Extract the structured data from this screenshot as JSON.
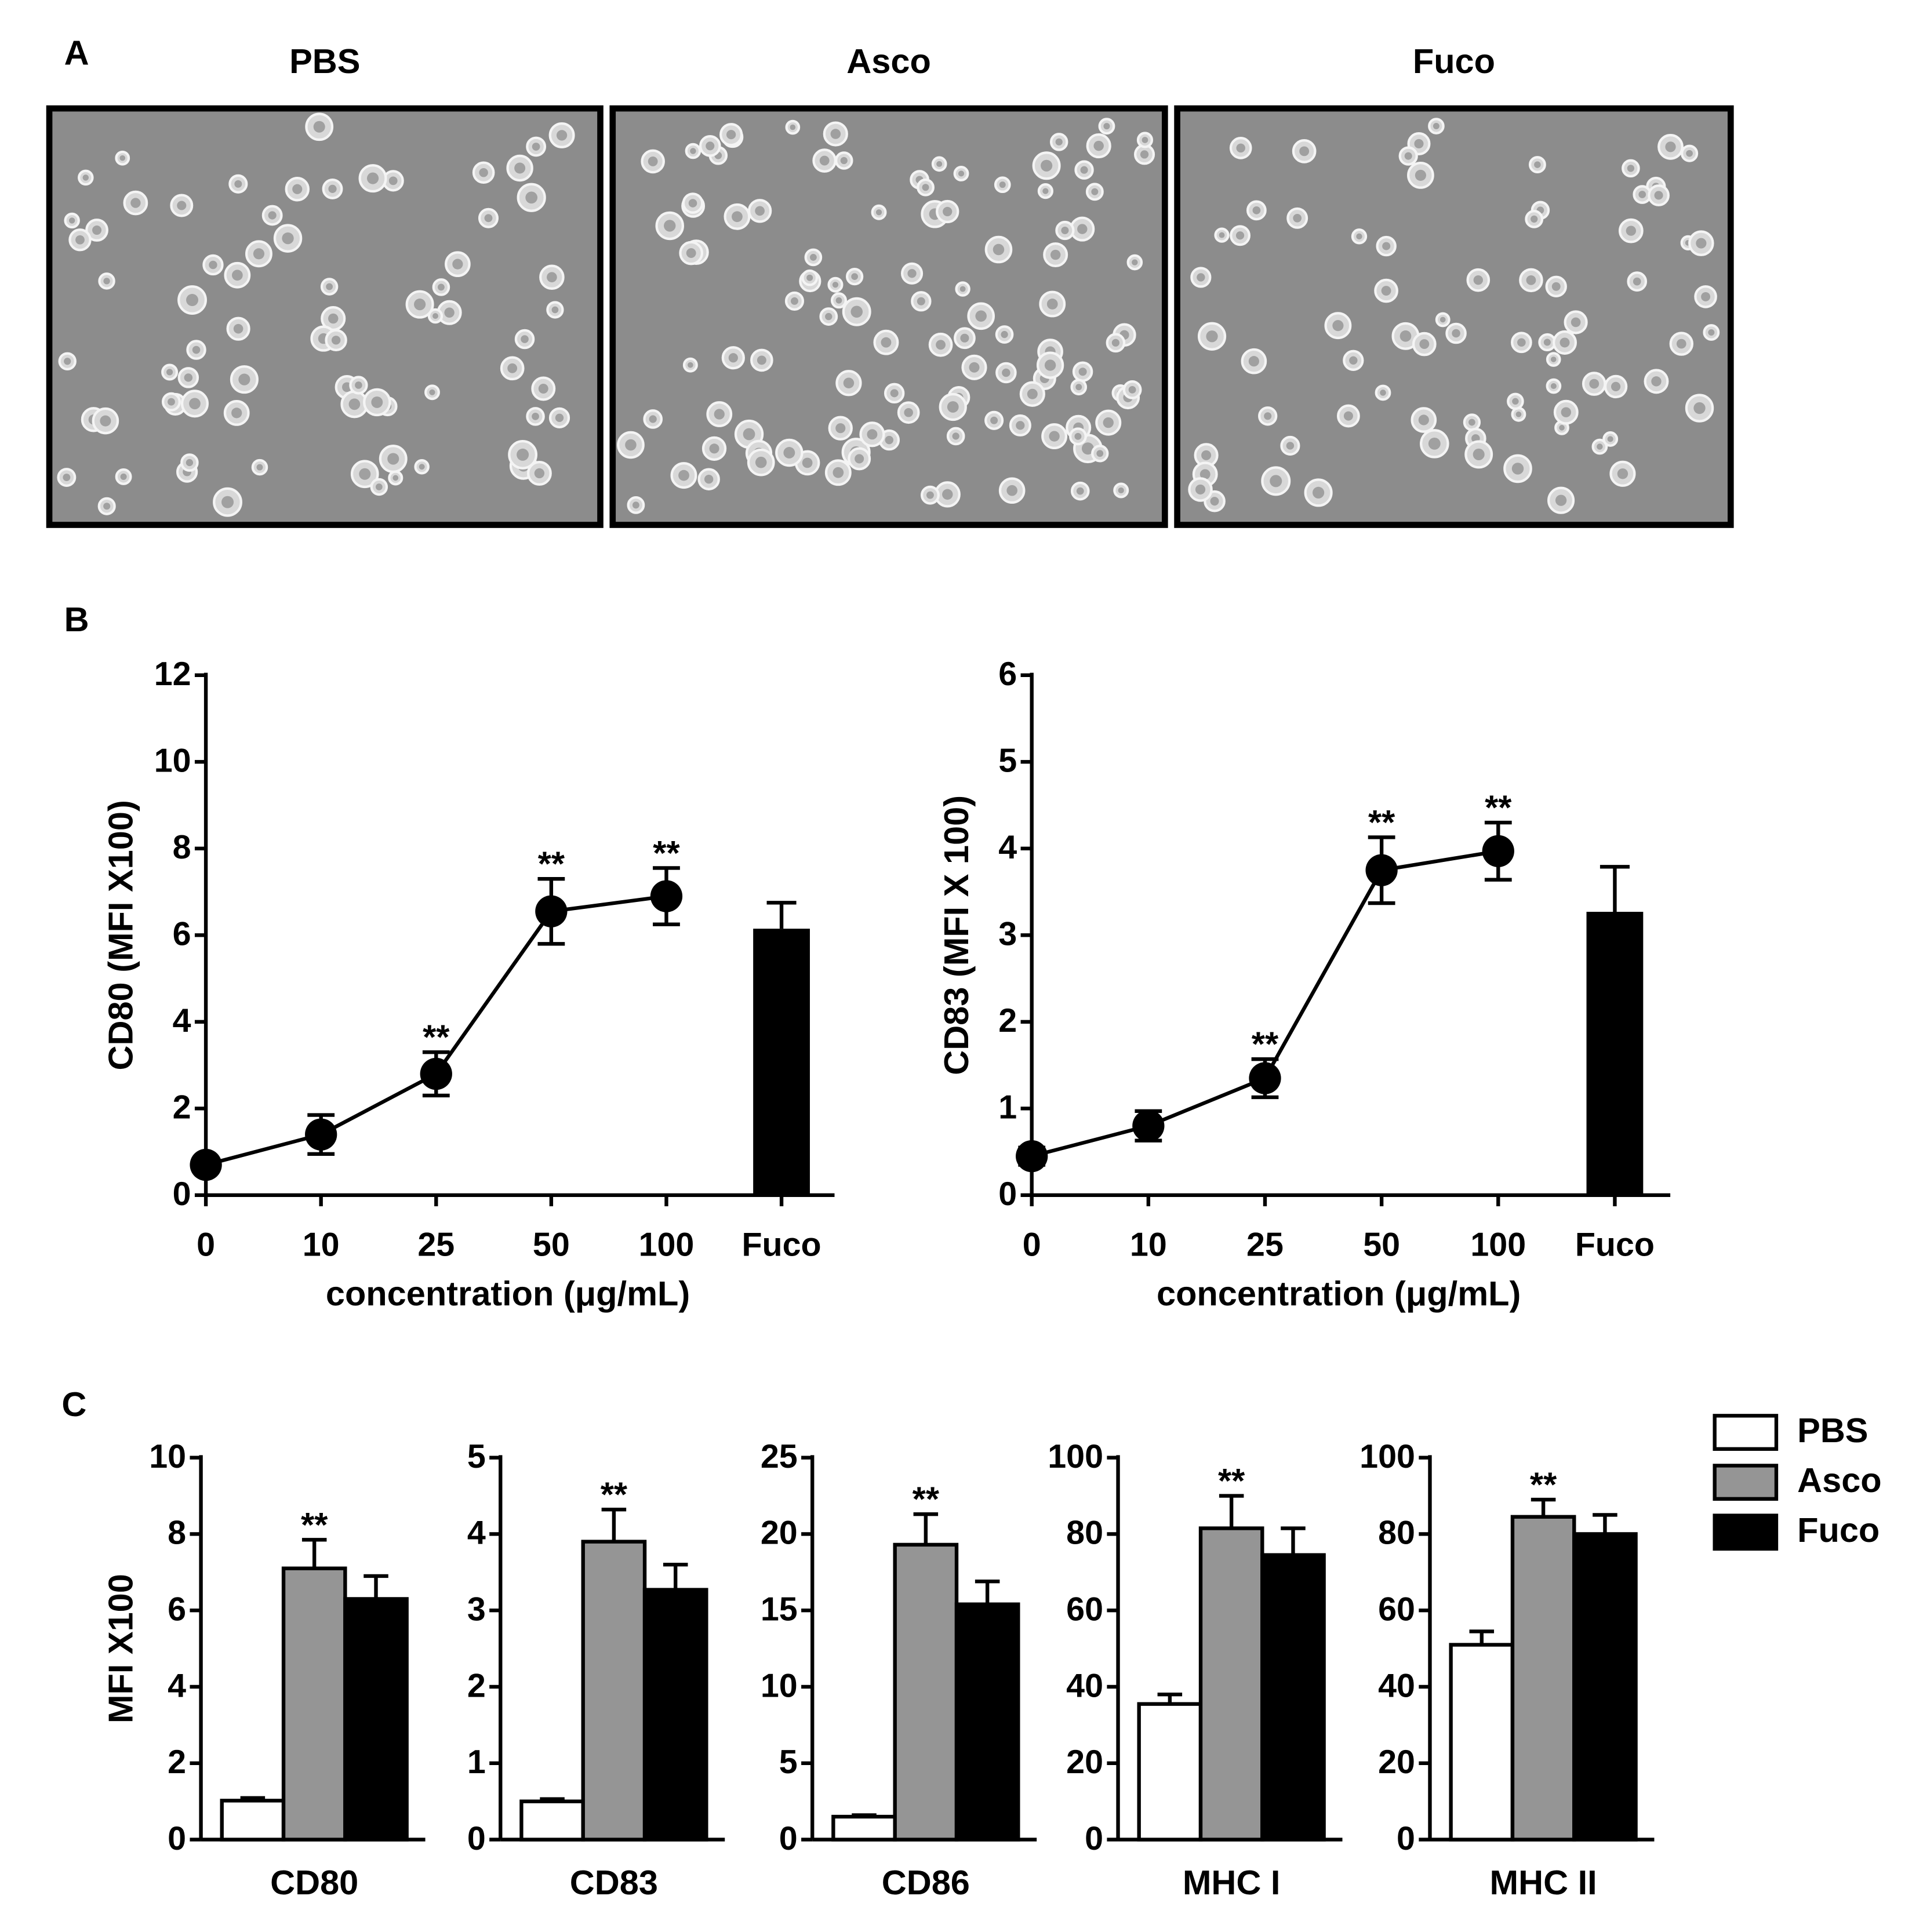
{
  "panel_labels": [
    "A",
    "B",
    "C"
  ],
  "image_titles": [
    "PBS",
    "Asco",
    "Fuco"
  ],
  "chart_data": [
    {
      "type": "line",
      "ylabel": "CD80 (MFI X100)",
      "xlabel": "concentration (μg/mL)",
      "categories": [
        "0",
        "10",
        "25",
        "50",
        "100",
        "Fuco"
      ],
      "ylim": [
        0,
        12
      ],
      "yticks": [
        0,
        2,
        4,
        6,
        8,
        10,
        12
      ],
      "series": [
        {
          "type": "line",
          "color": "#000000",
          "values": [
            0.7,
            1.4,
            2.8,
            6.55,
            6.9,
            null
          ],
          "errors": [
            0.1,
            0.45,
            0.5,
            0.75,
            0.65,
            null
          ]
        },
        {
          "type": "bar",
          "color": "#000000",
          "values": [
            null,
            null,
            null,
            null,
            null,
            6.15
          ],
          "errors": [
            null,
            null,
            null,
            null,
            null,
            0.6
          ]
        }
      ],
      "annotations": [
        {
          "category": "25",
          "text": "**"
        },
        {
          "category": "50",
          "text": "**"
        },
        {
          "category": "100",
          "text": "**"
        }
      ]
    },
    {
      "type": "line",
      "ylabel": "CD83 (MFI X 100)",
      "xlabel": "concentration (μg/mL)",
      "categories": [
        "0",
        "10",
        "25",
        "50",
        "100",
        "Fuco"
      ],
      "ylim": [
        0,
        6
      ],
      "yticks": [
        0,
        1,
        2,
        3,
        4,
        5,
        6
      ],
      "series": [
        {
          "type": "line",
          "color": "#000000",
          "values": [
            0.45,
            0.8,
            1.35,
            3.75,
            3.97,
            null
          ],
          "errors": [
            0.1,
            0.17,
            0.22,
            0.38,
            0.33,
            null
          ]
        },
        {
          "type": "bar",
          "color": "#000000",
          "values": [
            null,
            null,
            null,
            null,
            null,
            3.27
          ],
          "errors": [
            null,
            null,
            null,
            null,
            null,
            0.52
          ]
        }
      ],
      "annotations": [
        {
          "category": "25",
          "text": "**"
        },
        {
          "category": "50",
          "text": "**"
        },
        {
          "category": "100",
          "text": "**"
        }
      ]
    },
    {
      "type": "bar",
      "ylabel": "MFI X100",
      "categories": [
        "CD80"
      ],
      "ylim": [
        0,
        10
      ],
      "yticks": [
        0,
        2,
        4,
        6,
        8,
        10
      ],
      "legend": "right",
      "series": [
        {
          "name": "PBS",
          "color": "#ffffff",
          "values": [
            1.02
          ],
          "errors": [
            0.07
          ]
        },
        {
          "name": "Asco",
          "color": "#959595",
          "values": [
            7.1
          ],
          "errors": [
            0.75
          ]
        },
        {
          "name": "Fuco",
          "color": "#000000",
          "values": [
            6.3
          ],
          "errors": [
            0.6
          ]
        }
      ],
      "annotations": [
        {
          "series": "Asco",
          "text": "**"
        }
      ]
    },
    {
      "type": "bar",
      "categories": [
        "CD83"
      ],
      "ylim": [
        0,
        5
      ],
      "yticks": [
        0,
        1,
        2,
        3,
        4,
        5
      ],
      "series": [
        {
          "name": "PBS",
          "color": "#ffffff",
          "values": [
            0.5
          ],
          "errors": [
            0.03
          ]
        },
        {
          "name": "Asco",
          "color": "#959595",
          "values": [
            3.9
          ],
          "errors": [
            0.42
          ]
        },
        {
          "name": "Fuco",
          "color": "#000000",
          "values": [
            3.27
          ],
          "errors": [
            0.33
          ]
        }
      ],
      "annotations": [
        {
          "series": "Asco",
          "text": "**"
        }
      ]
    },
    {
      "type": "bar",
      "categories": [
        "CD86"
      ],
      "ylim": [
        0,
        25
      ],
      "yticks": [
        0,
        5,
        10,
        15,
        20,
        25
      ],
      "series": [
        {
          "name": "PBS",
          "color": "#ffffff",
          "values": [
            1.5
          ],
          "errors": [
            0.1
          ]
        },
        {
          "name": "Asco",
          "color": "#959595",
          "values": [
            19.3
          ],
          "errors": [
            2.0
          ]
        },
        {
          "name": "Fuco",
          "color": "#000000",
          "values": [
            15.4
          ],
          "errors": [
            1.5
          ]
        }
      ],
      "annotations": [
        {
          "series": "Asco",
          "text": "**"
        }
      ]
    },
    {
      "type": "bar",
      "categories": [
        "MHC I"
      ],
      "ylim": [
        0,
        100
      ],
      "yticks": [
        0,
        20,
        40,
        60,
        80,
        100
      ],
      "series": [
        {
          "name": "PBS",
          "color": "#ffffff",
          "values": [
            35.5
          ],
          "errors": [
            2.5
          ]
        },
        {
          "name": "Asco",
          "color": "#959595",
          "values": [
            81.5
          ],
          "errors": [
            8.5
          ]
        },
        {
          "name": "Fuco",
          "color": "#000000",
          "values": [
            74.5
          ],
          "errors": [
            7
          ]
        }
      ],
      "annotations": [
        {
          "series": "Asco",
          "text": "**"
        }
      ]
    },
    {
      "type": "bar",
      "categories": [
        "MHC II"
      ],
      "ylim": [
        0,
        100
      ],
      "yticks": [
        0,
        20,
        40,
        60,
        80,
        100
      ],
      "series": [
        {
          "name": "PBS",
          "color": "#ffffff",
          "values": [
            51
          ],
          "errors": [
            3.5
          ]
        },
        {
          "name": "Asco",
          "color": "#959595",
          "values": [
            84.5
          ],
          "errors": [
            4.5
          ]
        },
        {
          "name": "Fuco",
          "color": "#000000",
          "values": [
            80
          ],
          "errors": [
            5
          ]
        }
      ],
      "annotations": [
        {
          "series": "Asco",
          "text": "**"
        }
      ]
    }
  ]
}
